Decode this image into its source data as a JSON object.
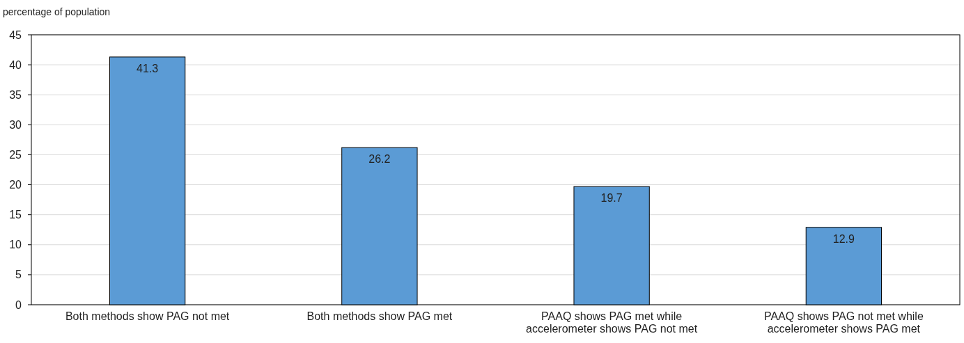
{
  "chart_data": {
    "type": "bar",
    "ylabel": "percentage of population",
    "categories": [
      "Both methods show PAG not met",
      "Both methods show PAG met",
      "PAAQ shows PAG met while accelerometer shows PAG not met",
      "PAAQ shows PAG not met while accelerometer shows PAG met"
    ],
    "values": [
      41.3,
      26.2,
      19.7,
      12.9
    ],
    "color": "#5b9bd5",
    "ylim": [
      0,
      45
    ],
    "yticks": [
      0,
      5,
      10,
      15,
      20,
      25,
      30,
      35,
      40,
      45
    ],
    "grid": "y",
    "data_labels": true
  }
}
